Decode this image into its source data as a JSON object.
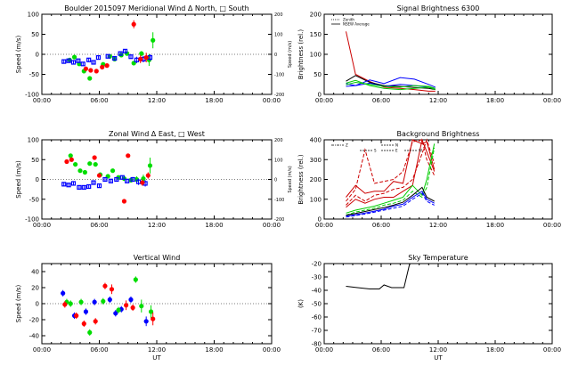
{
  "colors": {
    "north_east": "#00dd00",
    "south_west": "#0000ff",
    "vertical_a": "#ff0000",
    "zenith": "#ff0000",
    "line_blue": "#0000ff",
    "line_green": "#00cc00",
    "line_red": "#cc0000",
    "line_black": "#000000"
  },
  "x_axis": {
    "ticks": [
      0,
      6,
      12,
      18,
      24
    ],
    "tick_labels": [
      "00:00",
      "06:00",
      "12:00",
      "18:00",
      "00:00"
    ],
    "label": "UT"
  },
  "chart_data": [
    {
      "id": "meridional",
      "type": "scatter",
      "title": "Boulder   2015097     Meridional Wind   Δ North, □ South",
      "ylabel": "Speed (m/s)",
      "ylabel_right": "Speed (m/s)",
      "ylim": [
        -100,
        100
      ],
      "yticks": [
        -100,
        -50,
        0,
        50,
        100
      ],
      "ylim_right": [
        -200,
        200
      ],
      "yticks_right": [
        -200,
        -100,
        0,
        100,
        200
      ],
      "series": [
        {
          "name": "North",
          "color": "#00dd00",
          "marker": "circle",
          "x": [
            2.9,
            3.4,
            3.9,
            4.4,
            5.0,
            6.4,
            7.1,
            7.6,
            8.3,
            8.9,
            9.6,
            10.4,
            11.2,
            11.6
          ],
          "y": [
            -14,
            -7,
            -24,
            -42,
            -60,
            -25,
            -5,
            -12,
            -2,
            2,
            -22,
            2,
            -14,
            35
          ],
          "err": [
            4,
            4,
            4,
            4,
            4,
            4,
            4,
            4,
            4,
            4,
            4,
            6,
            15,
            20
          ]
        },
        {
          "name": "South",
          "color": "#0000ff",
          "marker": "square",
          "x": [
            2.3,
            2.8,
            3.3,
            3.8,
            4.3,
            4.9,
            5.4,
            5.9,
            6.9,
            7.6,
            8.2,
            8.7,
            9.3,
            9.9,
            10.6,
            11.3
          ],
          "y": [
            -18,
            -16,
            -20,
            -16,
            -24,
            -14,
            -20,
            -8,
            -5,
            -10,
            2,
            8,
            -6,
            -14,
            -12,
            -8
          ],
          "err": [
            4,
            4,
            4,
            4,
            4,
            4,
            4,
            4,
            4,
            4,
            4,
            4,
            4,
            8,
            8,
            8
          ]
        },
        {
          "name": "",
          "color": "#ff0000",
          "marker": "circle",
          "x": [
            4.6,
            5.1,
            5.7,
            6.3,
            6.8,
            9.6,
            10.3,
            10.9
          ],
          "y": [
            -36,
            -40,
            -42,
            -32,
            -28,
            75,
            -12,
            -8
          ],
          "err": [
            4,
            4,
            4,
            4,
            4,
            10,
            10,
            12
          ]
        }
      ]
    },
    {
      "id": "zonal",
      "type": "scatter",
      "title": "Zonal Wind     Δ East, □ West",
      "ylabel": "Speed (m/s)",
      "ylabel_right": "Speed (m/s)",
      "ylim": [
        -100,
        100
      ],
      "yticks": [
        -100,
        -50,
        0,
        50,
        100
      ],
      "ylim_right": [
        -200,
        200
      ],
      "yticks_right": [
        -200,
        -100,
        0,
        100,
        200
      ],
      "series": [
        {
          "name": "East",
          "color": "#00dd00",
          "marker": "circle",
          "x": [
            3.0,
            3.5,
            4.0,
            4.5,
            5.0,
            5.6,
            6.1,
            6.9,
            7.4,
            8.0,
            8.6,
            9.3,
            9.9,
            10.6,
            11.3
          ],
          "y": [
            60,
            38,
            22,
            18,
            40,
            38,
            12,
            8,
            22,
            5,
            2,
            -2,
            0,
            2,
            35
          ],
          "err": [
            4,
            4,
            4,
            4,
            4,
            4,
            4,
            4,
            4,
            4,
            4,
            4,
            8,
            10,
            20
          ]
        },
        {
          "name": "West",
          "color": "#0000ff",
          "marker": "square",
          "x": [
            2.3,
            2.8,
            3.3,
            3.9,
            4.4,
            4.9,
            5.4,
            6.0,
            6.6,
            7.2,
            7.8,
            8.4,
            8.9,
            9.5,
            10.1,
            10.8
          ],
          "y": [
            -12,
            -14,
            -10,
            -20,
            -20,
            -18,
            -8,
            -16,
            0,
            -4,
            0,
            5,
            -4,
            0,
            -6,
            -10
          ],
          "err": [
            4,
            4,
            4,
            4,
            4,
            4,
            4,
            4,
            4,
            4,
            4,
            4,
            4,
            6,
            8,
            8
          ]
        },
        {
          "name": "",
          "color": "#ff0000",
          "marker": "circle",
          "x": [
            2.6,
            3.1,
            5.5,
            6.0,
            8.6,
            9.0,
            10.5,
            11.1
          ],
          "y": [
            45,
            50,
            55,
            10,
            -55,
            60,
            -8,
            10
          ],
          "err": [
            4,
            4,
            4,
            4,
            4,
            4,
            8,
            8
          ]
        }
      ]
    },
    {
      "id": "vertical",
      "type": "scatter",
      "title": "Vertical Wind",
      "ylabel": "Speed (m/s)",
      "ylim": [
        -50,
        50
      ],
      "yticks": [
        -40,
        -20,
        0,
        20,
        40
      ],
      "series": [
        {
          "name": "",
          "color": "#0000ff",
          "marker": "circle",
          "x": [
            2.2,
            3.4,
            4.6,
            5.5,
            7.1,
            7.7,
            8.3,
            9.3,
            10.9
          ],
          "y": [
            13,
            -15,
            -10,
            2,
            5,
            -12,
            -7,
            5,
            -22
          ],
          "err": [
            4,
            4,
            4,
            4,
            4,
            4,
            4,
            4,
            6
          ]
        },
        {
          "name": "",
          "color": "#00dd00",
          "marker": "circle",
          "x": [
            2.6,
            3.0,
            4.1,
            5.0,
            6.4,
            8.0,
            9.8,
            10.4,
            11.4
          ],
          "y": [
            2,
            0,
            2,
            -36,
            3,
            -8,
            30,
            -3,
            -10
          ],
          "err": [
            4,
            4,
            4,
            4,
            4,
            4,
            4,
            8,
            8
          ]
        },
        {
          "name": "",
          "color": "#ff0000",
          "marker": "circle",
          "x": [
            2.4,
            3.6,
            4.4,
            5.6,
            6.6,
            7.3,
            8.8,
            9.5,
            11.6
          ],
          "y": [
            -1,
            -15,
            -25,
            -22,
            22,
            18,
            -2,
            -5,
            -19
          ],
          "err": [
            4,
            4,
            4,
            4,
            4,
            6,
            6,
            4,
            8
          ]
        }
      ]
    },
    {
      "id": "signal",
      "type": "line",
      "title": "Signal Brightness        6300",
      "ylabel": "Brightness (rel.)",
      "ylim": [
        0,
        200
      ],
      "yticks": [
        0,
        50,
        100,
        150,
        200
      ],
      "legend": [
        "Zenith",
        "NSEW Average"
      ],
      "series": [
        {
          "name": "Zenith",
          "color": "#cc0000",
          "x": [
            2.3,
            3.3,
            4.8,
            6.3,
            8.0,
            9.5,
            11.0,
            11.7
          ],
          "y": [
            157,
            50,
            32,
            18,
            15,
            12,
            8,
            8
          ]
        },
        {
          "name": "NSEW Average",
          "color": "#000000",
          "x": [
            2.3,
            3.3,
            4.8,
            6.3,
            8.0,
            9.5,
            11.0,
            11.7
          ],
          "y": [
            33,
            47,
            30,
            22,
            20,
            17,
            15,
            12
          ]
        },
        {
          "name": "",
          "color": "#0000ff",
          "x": [
            2.3,
            3.3,
            4.8,
            6.3,
            8.0,
            9.5,
            11.0,
            11.7
          ],
          "y": [
            27,
            22,
            36,
            27,
            42,
            38,
            25,
            18
          ]
        },
        {
          "name": "",
          "color": "#0000ff",
          "x": [
            2.3,
            3.3,
            4.8,
            6.3,
            8.0,
            9.5,
            11.0,
            11.7
          ],
          "y": [
            20,
            22,
            28,
            20,
            25,
            22,
            18,
            15
          ]
        },
        {
          "name": "",
          "color": "#00cc00",
          "x": [
            2.3,
            3.3,
            4.8,
            6.3,
            8.0,
            9.5,
            11.0,
            11.7
          ],
          "y": [
            24,
            30,
            25,
            20,
            18,
            22,
            20,
            15
          ]
        },
        {
          "name": "",
          "color": "#00cc00",
          "x": [
            2.3,
            3.3,
            4.8,
            6.3,
            8.0,
            9.5,
            11.0,
            11.7
          ],
          "y": [
            28,
            35,
            22,
            15,
            12,
            15,
            18,
            12
          ]
        }
      ]
    },
    {
      "id": "background",
      "type": "line",
      "title": "Background Brightness",
      "ylabel": "Brightness (rel.)",
      "ylim": [
        0,
        400
      ],
      "yticks": [
        0,
        100,
        200,
        300,
        400
      ],
      "legend": [
        "Z",
        "N",
        "E",
        "S",
        "W"
      ],
      "series": [
        {
          "name": "",
          "color": "#cc0000",
          "x": [
            2.3,
            3.3,
            4.3,
            5.3,
            6.3,
            7.3,
            8.3,
            9.3,
            10.3,
            10.8,
            11.6
          ],
          "y": [
            110,
            170,
            130,
            140,
            140,
            190,
            180,
            420,
            380,
            390,
            250
          ]
        },
        {
          "name": "",
          "color": "#cc0000",
          "x": [
            2.3,
            3.3,
            4.3,
            5.3,
            6.3,
            7.3,
            8.3,
            9.3,
            10.3,
            10.8,
            11.6
          ],
          "y": [
            90,
            150,
            350,
            180,
            190,
            200,
            240,
            390,
            410,
            300,
            220
          ]
        },
        {
          "name": "",
          "color": "#cc0000",
          "x": [
            2.3,
            3.3,
            4.3,
            5.3,
            6.3,
            7.3,
            8.3,
            9.3,
            10.3,
            10.8,
            11.6
          ],
          "y": [
            60,
            100,
            80,
            100,
            110,
            110,
            140,
            170,
            420,
            340,
            240
          ]
        },
        {
          "name": "",
          "color": "#cc0000",
          "x": [
            2.3,
            3.3,
            4.3,
            5.3,
            6.3,
            7.3,
            8.3,
            9.3,
            10.3,
            10.8,
            11.6
          ],
          "y": [
            70,
            120,
            90,
            120,
            130,
            150,
            160,
            200,
            330,
            400,
            280
          ]
        },
        {
          "name": "",
          "color": "#00cc00",
          "x": [
            2.3,
            3.3,
            4.3,
            5.3,
            6.3,
            7.3,
            8.3,
            9.3,
            10.3,
            10.8,
            11.6
          ],
          "y": [
            30,
            45,
            55,
            65,
            80,
            95,
            110,
            170,
            120,
            200,
            380
          ]
        },
        {
          "name": "",
          "color": "#00cc00",
          "x": [
            2.3,
            3.3,
            4.3,
            5.3,
            6.3,
            7.3,
            8.3,
            9.3,
            10.3,
            10.8,
            11.6
          ],
          "y": [
            20,
            35,
            45,
            55,
            70,
            80,
            95,
            140,
            110,
            160,
            360
          ]
        },
        {
          "name": "",
          "color": "#0000ff",
          "x": [
            2.3,
            3.3,
            4.3,
            5.3,
            6.3,
            7.3,
            8.3,
            9.3,
            10.3,
            10.8,
            11.6
          ],
          "y": [
            15,
            22,
            30,
            40,
            50,
            65,
            75,
            110,
            140,
            100,
            80
          ]
        },
        {
          "name": "",
          "color": "#0000ff",
          "x": [
            2.3,
            3.3,
            4.3,
            5.3,
            6.3,
            7.3,
            8.3,
            9.3,
            10.3,
            10.8,
            11.6
          ],
          "y": [
            10,
            18,
            25,
            35,
            45,
            55,
            65,
            100,
            130,
            90,
            70
          ]
        },
        {
          "name": "",
          "color": "#000000",
          "x": [
            2.3,
            3.3,
            4.3,
            5.3,
            6.3,
            7.3,
            8.3,
            9.3,
            10.3,
            10.8,
            11.6
          ],
          "y": [
            20,
            28,
            38,
            48,
            58,
            70,
            85,
            120,
            160,
            110,
            90
          ]
        }
      ]
    },
    {
      "id": "skytemp",
      "type": "line",
      "title": "Sky Temperature",
      "ylabel": "(K)",
      "ylim": [
        -80,
        -20
      ],
      "yticks": [
        -80,
        -70,
        -60,
        -50,
        -40,
        -30,
        -20
      ],
      "series": [
        {
          "name": "",
          "color": "#000000",
          "x": [
            2.3,
            3.5,
            4.8,
            5.8,
            6.3,
            7.1,
            8.4,
            9.0
          ],
          "y": [
            -37,
            -38,
            -39,
            -39,
            -36,
            -38,
            -38,
            -20
          ]
        }
      ]
    }
  ]
}
